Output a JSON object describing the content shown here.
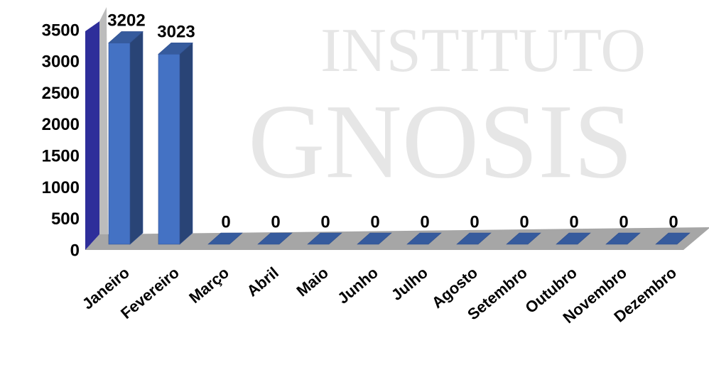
{
  "chart_data": {
    "type": "bar3d",
    "watermark": [
      "INSTITUTO",
      "GNOSIS"
    ],
    "categories": [
      "Janeiro",
      "Fevereiro",
      "Março",
      "Abril",
      "Maio",
      "Junho",
      "Julho",
      "Agosto",
      "Setembro",
      "Outubro",
      "Novembro",
      "Dezembro"
    ],
    "values": [
      3202,
      3023,
      0,
      0,
      0,
      0,
      0,
      0,
      0,
      0,
      0,
      0
    ],
    "color": "#4472c4",
    "ylim": [
      0,
      3500
    ],
    "yticks": [
      0,
      500,
      1000,
      1500,
      2000,
      2500,
      3000,
      3500
    ]
  }
}
